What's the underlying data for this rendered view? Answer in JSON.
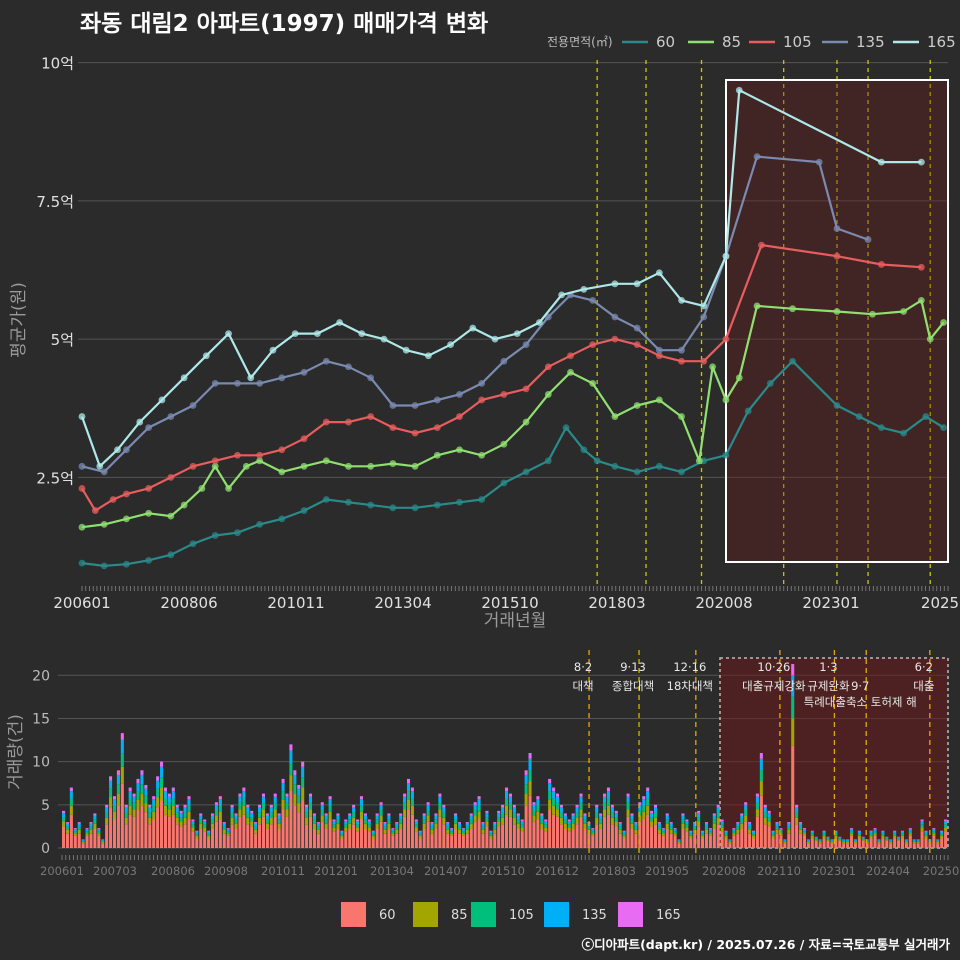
{
  "header": {
    "title": "좌동 대림2 아파트(1997) 매매가격 변화",
    "caption": "ⓒ디아파트(dapt.kr) / 2025.07.26 / 자료=국토교통부 실거래가"
  },
  "chart_data": [
    {
      "type": "line",
      "title": "좌동 대림2 아파트(1997) 매매가격 변화",
      "xlabel": "거래년월",
      "ylabel": "평균가(원)",
      "x_ticks": [
        "200601",
        "200806",
        "201011",
        "201304",
        "201510",
        "201803",
        "202008",
        "202301",
        "2025"
      ],
      "y_ticks": [
        {
          "value": 2.5,
          "label": "2.5억"
        },
        {
          "value": 5,
          "label": "5억"
        },
        {
          "value": 7.5,
          "label": "7.5억"
        },
        {
          "value": 10,
          "label": "10억"
        }
      ],
      "ylim": [
        0.5,
        10.3
      ],
      "xlim": [
        2006.0,
        2025.5
      ],
      "legend_title": "전용면적(㎡)",
      "legend_position": "top-right",
      "series": [
        {
          "name": "60",
          "color": "#2a8a8a",
          "points": [
            [
              2006.0,
              0.95
            ],
            [
              2006.5,
              0.9
            ],
            [
              2007.0,
              0.93
            ],
            [
              2007.5,
              1.0
            ],
            [
              2008.0,
              1.1
            ],
            [
              2008.5,
              1.3
            ],
            [
              2009.0,
              1.45
            ],
            [
              2009.5,
              1.5
            ],
            [
              2010.0,
              1.65
            ],
            [
              2010.5,
              1.75
            ],
            [
              2011.0,
              1.9
            ],
            [
              2011.5,
              2.1
            ],
            [
              2012.0,
              2.05
            ],
            [
              2012.5,
              2.0
            ],
            [
              2013.0,
              1.95
            ],
            [
              2013.5,
              1.95
            ],
            [
              2014.0,
              2.0
            ],
            [
              2014.5,
              2.05
            ],
            [
              2015.0,
              2.1
            ],
            [
              2015.5,
              2.4
            ],
            [
              2016.0,
              2.6
            ],
            [
              2016.5,
              2.8
            ],
            [
              2016.9,
              3.4
            ],
            [
              2017.3,
              3.0
            ],
            [
              2017.6,
              2.8
            ],
            [
              2018.0,
              2.7
            ],
            [
              2018.5,
              2.6
            ],
            [
              2019.0,
              2.7
            ],
            [
              2019.5,
              2.6
            ],
            [
              2020.0,
              2.8
            ],
            [
              2020.5,
              2.9
            ],
            [
              2021.0,
              3.7
            ],
            [
              2021.5,
              4.2
            ],
            [
              2022.0,
              4.6
            ],
            [
              2023.0,
              3.8
            ],
            [
              2023.5,
              3.6
            ],
            [
              2024.0,
              3.4
            ],
            [
              2024.5,
              3.3
            ],
            [
              2025.0,
              3.6
            ],
            [
              2025.4,
              3.4
            ]
          ]
        },
        {
          "name": "85",
          "color": "#8fe070",
          "points": [
            [
              2006.0,
              1.6
            ],
            [
              2006.5,
              1.65
            ],
            [
              2007.0,
              1.75
            ],
            [
              2007.5,
              1.85
            ],
            [
              2008.0,
              1.8
            ],
            [
              2008.3,
              2.0
            ],
            [
              2008.7,
              2.3
            ],
            [
              2009.0,
              2.7
            ],
            [
              2009.3,
              2.3
            ],
            [
              2009.7,
              2.7
            ],
            [
              2010.0,
              2.8
            ],
            [
              2010.5,
              2.6
            ],
            [
              2011.0,
              2.7
            ],
            [
              2011.5,
              2.8
            ],
            [
              2012.0,
              2.7
            ],
            [
              2012.5,
              2.7
            ],
            [
              2013.0,
              2.75
            ],
            [
              2013.5,
              2.7
            ],
            [
              2014.0,
              2.9
            ],
            [
              2014.5,
              3.0
            ],
            [
              2015.0,
              2.9
            ],
            [
              2015.5,
              3.1
            ],
            [
              2016.0,
              3.5
            ],
            [
              2016.5,
              4.0
            ],
            [
              2017.0,
              4.4
            ],
            [
              2017.5,
              4.2
            ],
            [
              2018.0,
              3.6
            ],
            [
              2018.5,
              3.8
            ],
            [
              2019.0,
              3.9
            ],
            [
              2019.5,
              3.6
            ],
            [
              2019.9,
              2.8
            ],
            [
              2020.2,
              4.5
            ],
            [
              2020.5,
              3.9
            ],
            [
              2020.8,
              4.3
            ],
            [
              2021.2,
              5.6
            ],
            [
              2022.0,
              5.55
            ],
            [
              2023.0,
              5.5
            ],
            [
              2023.8,
              5.45
            ],
            [
              2024.5,
              5.5
            ],
            [
              2024.9,
              5.7
            ],
            [
              2025.1,
              5.0
            ],
            [
              2025.4,
              5.3
            ]
          ]
        },
        {
          "name": "105",
          "color": "#e85d5d",
          "points": [
            [
              2006.0,
              2.3
            ],
            [
              2006.3,
              1.9
            ],
            [
              2006.7,
              2.1
            ],
            [
              2007.0,
              2.2
            ],
            [
              2007.5,
              2.3
            ],
            [
              2008.0,
              2.5
            ],
            [
              2008.5,
              2.7
            ],
            [
              2009.0,
              2.8
            ],
            [
              2009.5,
              2.9
            ],
            [
              2010.0,
              2.9
            ],
            [
              2010.5,
              3.0
            ],
            [
              2011.0,
              3.2
            ],
            [
              2011.5,
              3.5
            ],
            [
              2012.0,
              3.5
            ],
            [
              2012.5,
              3.6
            ],
            [
              2013.0,
              3.4
            ],
            [
              2013.5,
              3.3
            ],
            [
              2014.0,
              3.4
            ],
            [
              2014.5,
              3.6
            ],
            [
              2015.0,
              3.9
            ],
            [
              2015.5,
              4.0
            ],
            [
              2016.0,
              4.1
            ],
            [
              2016.5,
              4.5
            ],
            [
              2017.0,
              4.7
            ],
            [
              2017.5,
              4.9
            ],
            [
              2018.0,
              5.0
            ],
            [
              2018.5,
              4.9
            ],
            [
              2019.0,
              4.7
            ],
            [
              2019.5,
              4.6
            ],
            [
              2020.0,
              4.6
            ],
            [
              2020.5,
              5.0
            ],
            [
              2021.3,
              6.7
            ],
            [
              2023.0,
              6.5
            ],
            [
              2024.0,
              6.35
            ],
            [
              2024.9,
              6.3
            ]
          ]
        },
        {
          "name": "135",
          "color": "#7a8ab0",
          "points": [
            [
              2006.0,
              2.7
            ],
            [
              2006.5,
              2.6
            ],
            [
              2007.0,
              3.0
            ],
            [
              2007.5,
              3.4
            ],
            [
              2008.0,
              3.6
            ],
            [
              2008.5,
              3.8
            ],
            [
              2009.0,
              4.2
            ],
            [
              2009.5,
              4.2
            ],
            [
              2010.0,
              4.2
            ],
            [
              2010.5,
              4.3
            ],
            [
              2011.0,
              4.4
            ],
            [
              2011.5,
              4.6
            ],
            [
              2012.0,
              4.5
            ],
            [
              2012.5,
              4.3
            ],
            [
              2013.0,
              3.8
            ],
            [
              2013.5,
              3.8
            ],
            [
              2014.0,
              3.9
            ],
            [
              2014.5,
              4.0
            ],
            [
              2015.0,
              4.2
            ],
            [
              2015.5,
              4.6
            ],
            [
              2016.0,
              4.9
            ],
            [
              2016.5,
              5.4
            ],
            [
              2017.0,
              5.8
            ],
            [
              2017.5,
              5.7
            ],
            [
              2018.0,
              5.4
            ],
            [
              2018.5,
              5.2
            ],
            [
              2019.0,
              4.8
            ],
            [
              2019.5,
              4.8
            ],
            [
              2020.0,
              5.4
            ],
            [
              2020.5,
              6.5
            ],
            [
              2021.2,
              8.3
            ],
            [
              2022.6,
              8.2
            ],
            [
              2023.0,
              7.0
            ],
            [
              2023.7,
              6.8
            ]
          ]
        },
        {
          "name": "165",
          "color": "#aee8e8",
          "points": [
            [
              2006.0,
              3.6
            ],
            [
              2006.4,
              2.7
            ],
            [
              2006.8,
              3.0
            ],
            [
              2007.3,
              3.5
            ],
            [
              2007.8,
              3.9
            ],
            [
              2008.3,
              4.3
            ],
            [
              2008.8,
              4.7
            ],
            [
              2009.3,
              5.1
            ],
            [
              2009.8,
              4.3
            ],
            [
              2010.3,
              4.8
            ],
            [
              2010.8,
              5.1
            ],
            [
              2011.3,
              5.1
            ],
            [
              2011.8,
              5.3
            ],
            [
              2012.3,
              5.1
            ],
            [
              2012.8,
              5.0
            ],
            [
              2013.3,
              4.8
            ],
            [
              2013.8,
              4.7
            ],
            [
              2014.3,
              4.9
            ],
            [
              2014.8,
              5.2
            ],
            [
              2015.3,
              5.0
            ],
            [
              2015.8,
              5.1
            ],
            [
              2016.3,
              5.3
            ],
            [
              2016.8,
              5.8
            ],
            [
              2017.3,
              5.9
            ],
            [
              2018.0,
              6.0
            ],
            [
              2018.5,
              6.0
            ],
            [
              2019.0,
              6.2
            ],
            [
              2019.5,
              5.7
            ],
            [
              2020.0,
              5.6
            ],
            [
              2020.5,
              6.5
            ],
            [
              2020.8,
              9.5
            ],
            [
              2024.0,
              8.2
            ],
            [
              2024.9,
              8.2
            ]
          ]
        }
      ]
    },
    {
      "type": "bar",
      "stacked": true,
      "ylabel": "거래량(건)",
      "x_ticks": [
        "200601",
        "200703",
        "200806",
        "200908",
        "201011",
        "201201",
        "201304",
        "201407",
        "201510",
        "201612",
        "201803",
        "201905",
        "202008",
        "202110",
        "202301",
        "202404",
        "20250"
      ],
      "y_ticks": [
        0,
        5,
        10,
        15,
        20
      ],
      "ylim": [
        0,
        22
      ],
      "xlim": [
        2006.0,
        2025.5
      ],
      "legend_position": "bottom",
      "series": [
        {
          "name": "60",
          "color": "#f8766d"
        },
        {
          "name": "85",
          "color": "#a3a500"
        },
        {
          "name": "105",
          "color": "#00bf7d"
        },
        {
          "name": "135",
          "color": "#00b0f6"
        },
        {
          "name": "165",
          "color": "#e76bf3"
        }
      ],
      "monthly_totals": [
        4,
        3,
        7,
        2,
        3,
        1,
        2,
        3,
        4,
        2,
        1,
        5,
        8,
        6,
        9,
        13,
        5,
        7,
        6,
        8,
        9,
        7,
        5,
        6,
        8,
        10,
        7,
        6,
        7,
        5,
        4,
        5,
        6,
        3,
        2,
        4,
        3,
        2,
        4,
        5,
        6,
        3,
        2,
        5,
        4,
        6,
        7,
        5,
        4,
        3,
        5,
        6,
        4,
        5,
        6,
        4,
        8,
        6,
        12,
        9,
        7,
        10,
        5,
        6,
        4,
        3,
        5,
        4,
        6,
        3,
        4,
        2,
        3,
        4,
        5,
        3,
        6,
        4,
        3,
        2,
        4,
        5,
        3,
        4,
        2,
        3,
        4,
        6,
        8,
        7,
        3,
        2,
        4,
        5,
        3,
        4,
        6,
        5,
        3,
        2,
        4,
        3,
        2,
        3,
        4,
        5,
        6,
        3,
        4,
        2,
        3,
        4,
        5,
        7,
        6,
        5,
        4,
        3,
        9,
        11,
        5,
        6,
        4,
        3,
        8,
        7,
        6,
        5,
        4,
        3,
        4,
        5,
        6,
        4,
        3,
        2,
        5,
        4,
        6,
        7,
        5,
        4,
        3,
        2,
        6,
        4,
        3,
        5,
        6,
        7,
        4,
        5,
        3,
        2,
        4,
        3,
        2,
        1,
        4,
        3,
        2,
        3,
        4,
        2,
        3,
        2,
        4,
        5,
        3,
        2,
        1,
        2,
        3,
        4,
        5,
        3,
        2,
        6,
        11,
        5,
        4,
        2,
        3,
        2,
        1,
        3,
        21,
        5,
        3,
        2,
        1,
        2,
        1,
        1,
        2,
        1,
        1,
        2,
        1,
        1,
        1,
        2,
        1,
        2,
        1,
        1,
        2,
        2,
        1,
        2,
        1,
        1,
        2,
        1,
        2,
        1,
        2,
        1,
        1,
        3,
        2,
        1,
        2,
        1,
        2,
        3
      ]
    }
  ],
  "policy_events": [
    {
      "date": "8·2",
      "text": "대책",
      "x": 2017.6
    },
    {
      "date": "9·13",
      "text": "종합대책",
      "x": 2018.7
    },
    {
      "date": "12·16",
      "text": "18차대책",
      "x": 2019.95
    },
    {
      "date": "10·26",
      "text": "대출규제강화",
      "x": 2021.8
    },
    {
      "date": "1·3",
      "text": "규제완화",
      "x": 2023.0
    },
    {
      "date": "9·7",
      "text": "특례대출축소 토허제 해",
      "x": 2023.7
    },
    {
      "date": "6·2",
      "text": "대출",
      "x": 2025.1
    }
  ]
}
